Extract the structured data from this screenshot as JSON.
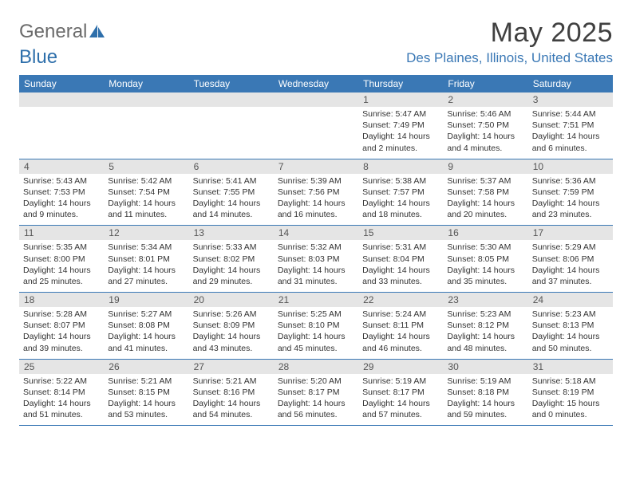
{
  "brand": {
    "part1": "General",
    "part2": "Blue"
  },
  "title": "May 2025",
  "location": "Des Plaines, Illinois, United States",
  "colors": {
    "header_bg": "#3a78b5",
    "daynum_bg": "#e5e5e5",
    "week_border": "#3a78b5",
    "text": "#333333",
    "location_text": "#3a78b5"
  },
  "weekdays": [
    "Sunday",
    "Monday",
    "Tuesday",
    "Wednesday",
    "Thursday",
    "Friday",
    "Saturday"
  ],
  "weeks": [
    [
      {
        "n": "",
        "sr": "",
        "ss": "",
        "dl": ""
      },
      {
        "n": "",
        "sr": "",
        "ss": "",
        "dl": ""
      },
      {
        "n": "",
        "sr": "",
        "ss": "",
        "dl": ""
      },
      {
        "n": "",
        "sr": "",
        "ss": "",
        "dl": ""
      },
      {
        "n": "1",
        "sr": "Sunrise: 5:47 AM",
        "ss": "Sunset: 7:49 PM",
        "dl": "Daylight: 14 hours and 2 minutes."
      },
      {
        "n": "2",
        "sr": "Sunrise: 5:46 AM",
        "ss": "Sunset: 7:50 PM",
        "dl": "Daylight: 14 hours and 4 minutes."
      },
      {
        "n": "3",
        "sr": "Sunrise: 5:44 AM",
        "ss": "Sunset: 7:51 PM",
        "dl": "Daylight: 14 hours and 6 minutes."
      }
    ],
    [
      {
        "n": "4",
        "sr": "Sunrise: 5:43 AM",
        "ss": "Sunset: 7:53 PM",
        "dl": "Daylight: 14 hours and 9 minutes."
      },
      {
        "n": "5",
        "sr": "Sunrise: 5:42 AM",
        "ss": "Sunset: 7:54 PM",
        "dl": "Daylight: 14 hours and 11 minutes."
      },
      {
        "n": "6",
        "sr": "Sunrise: 5:41 AM",
        "ss": "Sunset: 7:55 PM",
        "dl": "Daylight: 14 hours and 14 minutes."
      },
      {
        "n": "7",
        "sr": "Sunrise: 5:39 AM",
        "ss": "Sunset: 7:56 PM",
        "dl": "Daylight: 14 hours and 16 minutes."
      },
      {
        "n": "8",
        "sr": "Sunrise: 5:38 AM",
        "ss": "Sunset: 7:57 PM",
        "dl": "Daylight: 14 hours and 18 minutes."
      },
      {
        "n": "9",
        "sr": "Sunrise: 5:37 AM",
        "ss": "Sunset: 7:58 PM",
        "dl": "Daylight: 14 hours and 20 minutes."
      },
      {
        "n": "10",
        "sr": "Sunrise: 5:36 AM",
        "ss": "Sunset: 7:59 PM",
        "dl": "Daylight: 14 hours and 23 minutes."
      }
    ],
    [
      {
        "n": "11",
        "sr": "Sunrise: 5:35 AM",
        "ss": "Sunset: 8:00 PM",
        "dl": "Daylight: 14 hours and 25 minutes."
      },
      {
        "n": "12",
        "sr": "Sunrise: 5:34 AM",
        "ss": "Sunset: 8:01 PM",
        "dl": "Daylight: 14 hours and 27 minutes."
      },
      {
        "n": "13",
        "sr": "Sunrise: 5:33 AM",
        "ss": "Sunset: 8:02 PM",
        "dl": "Daylight: 14 hours and 29 minutes."
      },
      {
        "n": "14",
        "sr": "Sunrise: 5:32 AM",
        "ss": "Sunset: 8:03 PM",
        "dl": "Daylight: 14 hours and 31 minutes."
      },
      {
        "n": "15",
        "sr": "Sunrise: 5:31 AM",
        "ss": "Sunset: 8:04 PM",
        "dl": "Daylight: 14 hours and 33 minutes."
      },
      {
        "n": "16",
        "sr": "Sunrise: 5:30 AM",
        "ss": "Sunset: 8:05 PM",
        "dl": "Daylight: 14 hours and 35 minutes."
      },
      {
        "n": "17",
        "sr": "Sunrise: 5:29 AM",
        "ss": "Sunset: 8:06 PM",
        "dl": "Daylight: 14 hours and 37 minutes."
      }
    ],
    [
      {
        "n": "18",
        "sr": "Sunrise: 5:28 AM",
        "ss": "Sunset: 8:07 PM",
        "dl": "Daylight: 14 hours and 39 minutes."
      },
      {
        "n": "19",
        "sr": "Sunrise: 5:27 AM",
        "ss": "Sunset: 8:08 PM",
        "dl": "Daylight: 14 hours and 41 minutes."
      },
      {
        "n": "20",
        "sr": "Sunrise: 5:26 AM",
        "ss": "Sunset: 8:09 PM",
        "dl": "Daylight: 14 hours and 43 minutes."
      },
      {
        "n": "21",
        "sr": "Sunrise: 5:25 AM",
        "ss": "Sunset: 8:10 PM",
        "dl": "Daylight: 14 hours and 45 minutes."
      },
      {
        "n": "22",
        "sr": "Sunrise: 5:24 AM",
        "ss": "Sunset: 8:11 PM",
        "dl": "Daylight: 14 hours and 46 minutes."
      },
      {
        "n": "23",
        "sr": "Sunrise: 5:23 AM",
        "ss": "Sunset: 8:12 PM",
        "dl": "Daylight: 14 hours and 48 minutes."
      },
      {
        "n": "24",
        "sr": "Sunrise: 5:23 AM",
        "ss": "Sunset: 8:13 PM",
        "dl": "Daylight: 14 hours and 50 minutes."
      }
    ],
    [
      {
        "n": "25",
        "sr": "Sunrise: 5:22 AM",
        "ss": "Sunset: 8:14 PM",
        "dl": "Daylight: 14 hours and 51 minutes."
      },
      {
        "n": "26",
        "sr": "Sunrise: 5:21 AM",
        "ss": "Sunset: 8:15 PM",
        "dl": "Daylight: 14 hours and 53 minutes."
      },
      {
        "n": "27",
        "sr": "Sunrise: 5:21 AM",
        "ss": "Sunset: 8:16 PM",
        "dl": "Daylight: 14 hours and 54 minutes."
      },
      {
        "n": "28",
        "sr": "Sunrise: 5:20 AM",
        "ss": "Sunset: 8:17 PM",
        "dl": "Daylight: 14 hours and 56 minutes."
      },
      {
        "n": "29",
        "sr": "Sunrise: 5:19 AM",
        "ss": "Sunset: 8:17 PM",
        "dl": "Daylight: 14 hours and 57 minutes."
      },
      {
        "n": "30",
        "sr": "Sunrise: 5:19 AM",
        "ss": "Sunset: 8:18 PM",
        "dl": "Daylight: 14 hours and 59 minutes."
      },
      {
        "n": "31",
        "sr": "Sunrise: 5:18 AM",
        "ss": "Sunset: 8:19 PM",
        "dl": "Daylight: 15 hours and 0 minutes."
      }
    ]
  ]
}
